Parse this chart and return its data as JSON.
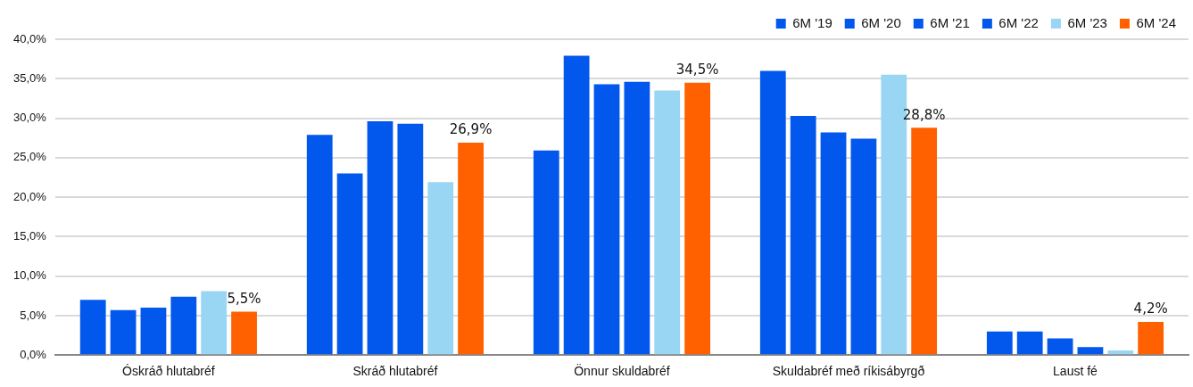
{
  "chart_data": {
    "type": "bar",
    "categories": [
      "Óskráð hlutabréf",
      "Skráð hlutabréf",
      "Önnur skuldabréf",
      "Skuldabréf með ríkisábyrgð",
      "Laust fé"
    ],
    "series": [
      {
        "name": "6M '19",
        "color": "#0257ec",
        "values": [
          7.0,
          27.9,
          25.9,
          36.0,
          3.0
        ]
      },
      {
        "name": "6M '20",
        "color": "#0257ec",
        "values": [
          5.7,
          23.0,
          37.9,
          30.3,
          3.0
        ]
      },
      {
        "name": "6M '21",
        "color": "#0257ec",
        "values": [
          6.0,
          29.6,
          34.3,
          28.2,
          2.1
        ]
      },
      {
        "name": "6M '22",
        "color": "#0257ec",
        "values": [
          7.4,
          29.3,
          34.6,
          27.4,
          1.0
        ]
      },
      {
        "name": "6M '23",
        "color": "#99d6f3",
        "values": [
          8.1,
          21.9,
          33.5,
          35.5,
          0.6
        ]
      },
      {
        "name": "6M '24",
        "color": "#ff6000",
        "values": [
          5.5,
          26.9,
          34.5,
          28.8,
          4.2
        ],
        "value_labels": [
          "5,5%",
          "26,9%",
          "34,5%",
          "28,8%",
          "4,2%"
        ]
      }
    ],
    "ylim": [
      0,
      40
    ],
    "yticks": [
      {
        "value": 0,
        "label": "0,0%"
      },
      {
        "value": 5,
        "label": "5,0%"
      },
      {
        "value": 10,
        "label": "10,0%"
      },
      {
        "value": 15,
        "label": "15,0%"
      },
      {
        "value": 20,
        "label": "20,0%"
      },
      {
        "value": 25,
        "label": "25,0%"
      },
      {
        "value": 30,
        "label": "30,0%"
      },
      {
        "value": 35,
        "label": "35,0%"
      },
      {
        "value": 40,
        "label": "40,0%"
      }
    ],
    "grid": "y",
    "legend": "top right"
  }
}
